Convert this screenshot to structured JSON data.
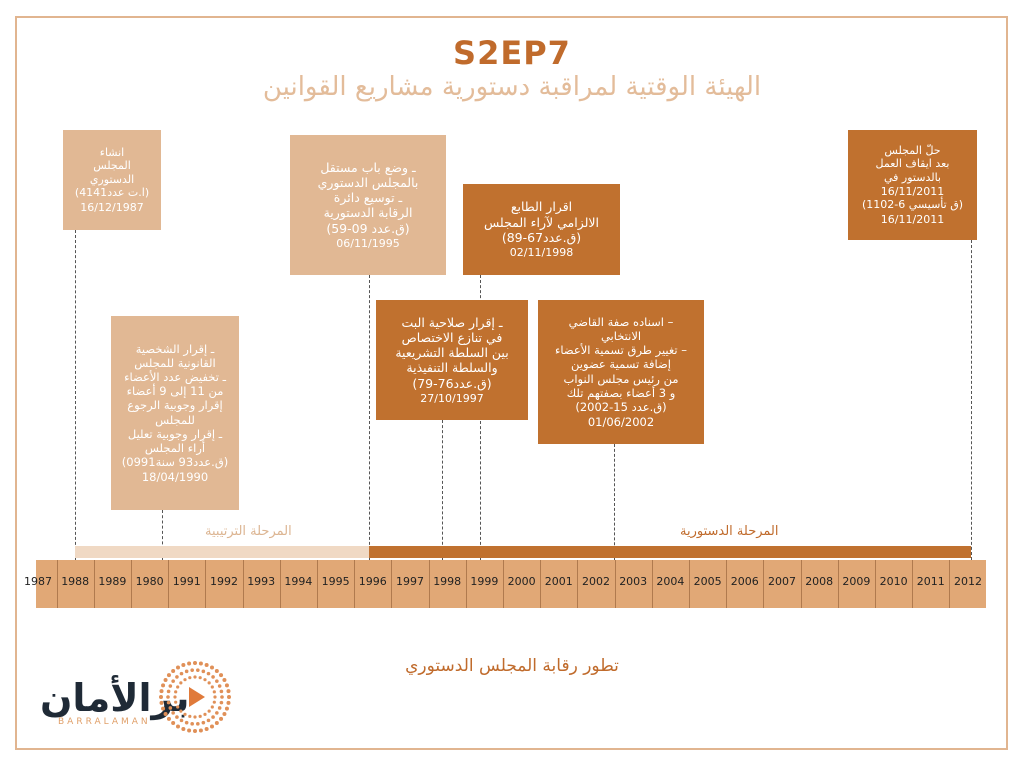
{
  "header": {
    "episode": "S2EP7",
    "subtitle": "الهيئة الوقتية لمراقبة دستورية مشاريع القوانين"
  },
  "events": [
    {
      "lines": [
        "انشاء",
        "المجلس",
        "الدستوري",
        "(ا.ت عدد4141)"
      ],
      "date": "16/12/1987"
    },
    {
      "lines": [
        "ـ إقرار الشخصية",
        "القانونية للمجلس",
        "ـ تخفيض عدد الأعضاء",
        "من 11 إلى 9 أعضاء",
        "إقرار وجوبية الرجوع",
        "للمجلس",
        "ـ إقرار وجوبية تعليل",
        "أراء المجلس",
        "(ق.عدد93 سنة0991)"
      ],
      "date": "18/04/1990"
    },
    {
      "lines": [
        "ـ وضع باب مستقل",
        "بالمجلس الدستوري",
        "ـ توسيع دائرة",
        "الرقابة الدستورية",
        "(ق.عدد 09-59)"
      ],
      "date": "06/11/1995"
    },
    {
      "lines": [
        "ـ إقرار صلاحية البت",
        "في تنازع الاختصاص",
        "بين السلطة التشريعية",
        "والسلطة التنفيذية",
        "(ق.عدد76-79)"
      ],
      "date": "27/10/1997"
    },
    {
      "lines": [
        "اقرار الطابع",
        "الالزامي لآراء المجلس",
        "(ق.عدد67-89)"
      ],
      "date": "02/11/1998"
    },
    {
      "lines": [
        "– اسناده صفة القاضي",
        "الانتخابي",
        "– تغيير طرق تسمية الأعضاء",
        "إضافة تسمية عضوين",
        "من رئيس مجلس النواب",
        "و 3 أعضاء بصفتهم تلك",
        "(ق.عدد 15-2002)"
      ],
      "date": "01/06/2002"
    },
    {
      "lines": [
        "حلّ المجلس",
        "بعد ايقاف العمل",
        "بالدستور في",
        "16/11/2011",
        "(ق تأسيسي 6-1102)"
      ],
      "date": "16/11/2011"
    }
  ],
  "phases": {
    "first": "المرحلة الترتيبية",
    "second": "المرحلة الدستورية"
  },
  "years": [
    "1987",
    "1988",
    "1989",
    "1980",
    "1991",
    "1992",
    "1993",
    "1994",
    "1995",
    "1996",
    "1997",
    "1998",
    "1999",
    "2000",
    "2001",
    "2002",
    "2003",
    "2004",
    "2005",
    "2006",
    "2007",
    "2008",
    "2009",
    "2010",
    "2011",
    "2012"
  ],
  "caption": "تطور رقابة المجلس الدستوري",
  "logo": {
    "arabic": "برالأمان",
    "latin": "BARRALAMAN"
  },
  "colors": {
    "dark": "#c0712f",
    "light": "#e1b894",
    "axis": "#e1a876",
    "frame": "#e1b590"
  }
}
